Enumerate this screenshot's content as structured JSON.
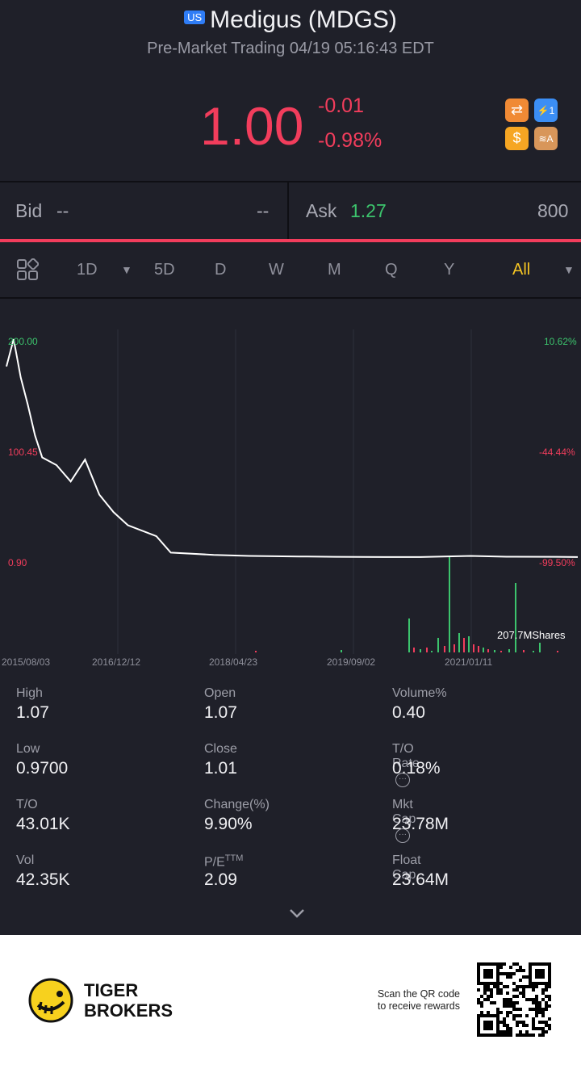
{
  "header": {
    "market_badge": "US",
    "title": "Medigus (MDGS)",
    "subtitle": "Pre-Market Trading 04/19 05:16:43 EDT"
  },
  "quote": {
    "price": "1.00",
    "change": "-0.01",
    "change_pct": "-0.98%",
    "colors": {
      "down": "#f23d5c",
      "up": "#3cc46d"
    }
  },
  "badges": [
    {
      "name": "swap-icon",
      "glyph": "⇄",
      "color": "#f08a35"
    },
    {
      "name": "lightning-1-icon",
      "glyph": "⚡1",
      "color": "#3b8ef5"
    },
    {
      "name": "dollar-icon",
      "glyph": "$",
      "color": "#f6a623"
    },
    {
      "name": "stack-a-icon",
      "glyph": "≋A",
      "color": "#d8965a"
    }
  ],
  "bidask": {
    "bid_label": "Bid",
    "bid_price": "--",
    "bid_size": "--",
    "ask_label": "Ask",
    "ask_price": "1.27",
    "ask_size": "800"
  },
  "periods": {
    "items": [
      "1D",
      "5D",
      "D",
      "W",
      "M",
      "Q",
      "Y",
      "All"
    ],
    "selected": "All"
  },
  "chart_data": {
    "type": "line",
    "y_labels_left": [
      "200.00",
      "100.45",
      "0.90"
    ],
    "y_labels_right": [
      "10.62%",
      "-44.44%",
      "-99.50%"
    ],
    "x_labels": [
      "2015/08/03",
      "2016/12/12",
      "2018/04/23",
      "2019/09/02",
      "2021/01/11"
    ],
    "volume_label": "207.7MShares",
    "ylim": [
      0.9,
      200
    ],
    "x": [
      "2015/08",
      "2015/09",
      "2015/10",
      "2015/11",
      "2015/12",
      "2016/01",
      "2016/03",
      "2016/05",
      "2016/07",
      "2016/09",
      "2016/11",
      "2017/01",
      "2017/03",
      "2017/05",
      "2017/07",
      "2018/01",
      "2018/06",
      "2019/01",
      "2019/06",
      "2020/01",
      "2020/06",
      "2021/01",
      "2021/06",
      "2022/01",
      "2022/04"
    ],
    "y": [
      175,
      200,
      165,
      140,
      112,
      92,
      85,
      70,
      90,
      58,
      42,
      30,
      25,
      20,
      5,
      3,
      2,
      1.5,
      1.2,
      1.0,
      1.0,
      2.0,
      1.3,
      1.2,
      1.0
    ],
    "series_color": "#ffffff"
  },
  "stats": [
    {
      "label": "High",
      "value": "1.07"
    },
    {
      "label": "Open",
      "value": "1.07"
    },
    {
      "label": "Volume%",
      "value": "0.40"
    },
    {
      "label": "Low",
      "value": "0.9700"
    },
    {
      "label": "Close",
      "value": "1.01"
    },
    {
      "label": "T/O Rate",
      "value": "0.18%",
      "info": true
    },
    {
      "label": "T/O",
      "value": "43.01K"
    },
    {
      "label": "Change(%)",
      "value": "9.90%"
    },
    {
      "label": "Mkt Cap",
      "value": "23.78M",
      "info": true
    },
    {
      "label": "Vol",
      "value": "42.35K"
    },
    {
      "label": "P/E",
      "sup": "TTM",
      "value": "2.09"
    },
    {
      "label": "Float Cap",
      "value": "23.64M"
    }
  ],
  "footer": {
    "brand_line1": "TIGER",
    "brand_line2": "BROKERS",
    "qr_text_1": "Scan the QR code",
    "qr_text_2": "to receive rewards"
  }
}
